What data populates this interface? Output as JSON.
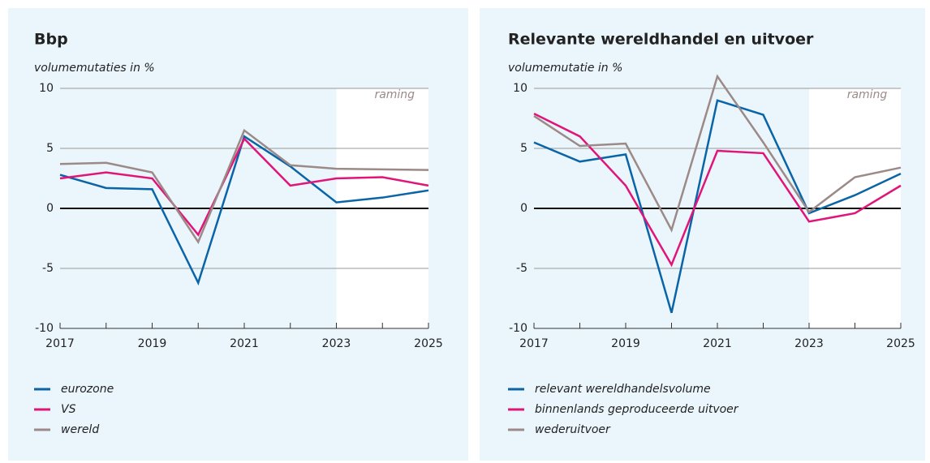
{
  "chart_data": [
    {
      "type": "line",
      "title": "Bbp",
      "subtitle": "volumemutaties in %",
      "x": [
        2017,
        2018,
        2019,
        2020,
        2021,
        2022,
        2023,
        2024,
        2025
      ],
      "xlim": [
        2017,
        2025
      ],
      "xticks": [
        2017,
        2019,
        2021,
        2023,
        2025
      ],
      "ylim": [
        -10,
        10
      ],
      "yticks": [
        -10,
        -5,
        0,
        5,
        10
      ],
      "grid": true,
      "forecast": {
        "label": "raming",
        "from": 2023,
        "to": 2025
      },
      "series": [
        {
          "name": "eurozone",
          "color": "#0a64a8",
          "values": [
            2.8,
            1.7,
            1.6,
            -6.2,
            6.0,
            3.5,
            0.5,
            0.9,
            1.5
          ]
        },
        {
          "name": "VS",
          "color": "#e0157a",
          "values": [
            2.5,
            3.0,
            2.5,
            -2.2,
            5.8,
            1.9,
            2.5,
            2.6,
            1.9
          ]
        },
        {
          "name": "wereld",
          "color": "#9b8a87",
          "values": [
            3.7,
            3.8,
            3.0,
            -2.8,
            6.5,
            3.6,
            3.3,
            3.25,
            3.2
          ]
        }
      ]
    },
    {
      "type": "line",
      "title": "Relevante wereldhandel en uitvoer",
      "subtitle": "volumemutatie in %",
      "x": [
        2017,
        2018,
        2019,
        2020,
        2021,
        2022,
        2023,
        2024,
        2025
      ],
      "xlim": [
        2017,
        2025
      ],
      "xticks": [
        2017,
        2019,
        2021,
        2023,
        2025
      ],
      "ylim": [
        -10,
        10
      ],
      "yticks": [
        -10,
        -5,
        0,
        5,
        10
      ],
      "grid": true,
      "forecast": {
        "label": "raming",
        "from": 2023,
        "to": 2025
      },
      "series": [
        {
          "name": "relevant wereldhandelsvolume",
          "color": "#0a64a8",
          "values": [
            5.5,
            3.9,
            4.5,
            -8.7,
            9.0,
            7.8,
            -0.4,
            1.1,
            2.9
          ]
        },
        {
          "name": "binnenlands geproduceerde uitvoer",
          "color": "#e0157a",
          "values": [
            7.9,
            6.0,
            1.9,
            -4.7,
            4.8,
            4.6,
            -1.1,
            -0.4,
            1.9
          ]
        },
        {
          "name": "wederuitvoer",
          "color": "#9b8a87",
          "values": [
            7.7,
            5.2,
            5.4,
            -1.8,
            11.0,
            5.5,
            -0.3,
            2.6,
            3.4
          ]
        }
      ]
    }
  ]
}
